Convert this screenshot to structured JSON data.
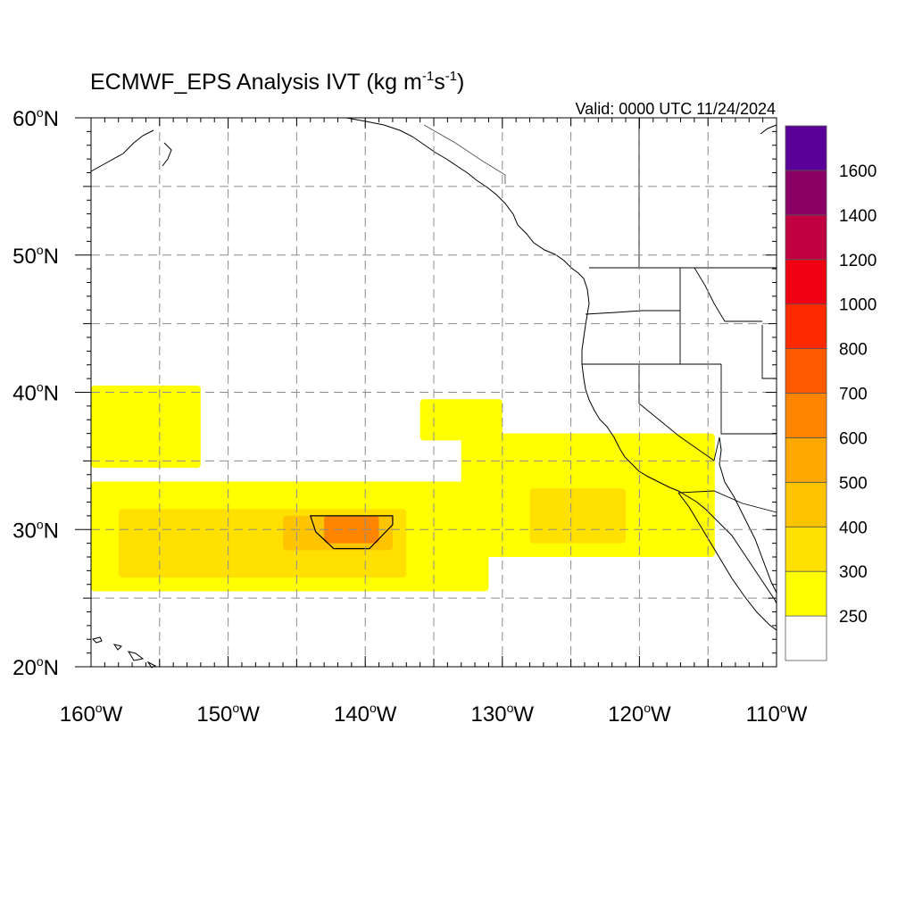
{
  "title": {
    "main": "ECMWF_EPS Analysis IVT (kg m",
    "exp1": "-1",
    "mid": "s",
    "exp2": "-1",
    "close": ")"
  },
  "valid_time": "Valid: 0000 UTC 11/24/2024",
  "axes": {
    "lat_labels": [
      {
        "deg": "60",
        "hem": "N",
        "value": 60
      },
      {
        "deg": "50",
        "hem": "N",
        "value": 50
      },
      {
        "deg": "40",
        "hem": "N",
        "value": 40
      },
      {
        "deg": "30",
        "hem": "N",
        "value": 30
      },
      {
        "deg": "20",
        "hem": "N",
        "value": 20
      }
    ],
    "lon_labels": [
      {
        "deg": "160",
        "hem": "W",
        "value": -160
      },
      {
        "deg": "150",
        "hem": "W",
        "value": -150
      },
      {
        "deg": "140",
        "hem": "W",
        "value": -140
      },
      {
        "deg": "130",
        "hem": "W",
        "value": -130
      },
      {
        "deg": "120",
        "hem": "W",
        "value": -120
      },
      {
        "deg": "110",
        "hem": "W",
        "value": -110
      }
    ],
    "lon_range": [
      -160,
      -110
    ],
    "lat_range": [
      20,
      60
    ],
    "grid_interval_deg": 5,
    "grid_style": "dashed"
  },
  "colorbar": {
    "bins": [
      {
        "color": "#ffffff",
        "label": ""
      },
      {
        "color": "#ffff00",
        "label": "250"
      },
      {
        "color": "#ffe000",
        "label": "300"
      },
      {
        "color": "#ffc400",
        "label": "400"
      },
      {
        "color": "#ffa800",
        "label": "500"
      },
      {
        "color": "#ff8400",
        "label": "600"
      },
      {
        "color": "#ff5a00",
        "label": "700"
      },
      {
        "color": "#ff2a00",
        "label": "800"
      },
      {
        "color": "#ee0010",
        "label": "1000"
      },
      {
        "color": "#c00040",
        "label": "1200"
      },
      {
        "color": "#8a0064",
        "label": "1400"
      },
      {
        "color": "#5a0098",
        "label": "1600"
      }
    ]
  },
  "ivt_field": {
    "units_of_level": "colorbar bin index (1 = 250-300, 2 = 300-400, 3 = 400-500, 4 = 500-600, 5 = 600-700, 6 = 700-800)",
    "regions": [
      {
        "name": "main atmospheric river plume",
        "lon": [
          -160,
          -131
        ],
        "lat": [
          25.5,
          33.5
        ],
        "level": 1
      },
      {
        "name": "plume core",
        "lon": [
          -158,
          -137
        ],
        "lat": [
          26.5,
          31.5
        ],
        "level": 2
      },
      {
        "name": "plume center",
        "lon": [
          -146,
          -138
        ],
        "lat": [
          28.5,
          31
        ],
        "level": 3
      },
      {
        "name": "IVT maximum",
        "lon": [
          -143,
          -139
        ],
        "lat": [
          29,
          31
        ],
        "level": 5
      },
      {
        "name": "coastal branch",
        "lon": [
          -133,
          -114.5
        ],
        "lat": [
          28,
          37
        ],
        "level": 1
      },
      {
        "name": "coastal branch core",
        "lon": [
          -128,
          -121
        ],
        "lat": [
          29,
          33
        ],
        "level": 2
      },
      {
        "name": "northwest tongue",
        "lon": [
          -160,
          -152
        ],
        "lat": [
          34.5,
          40.5
        ],
        "level": 1
      },
      {
        "name": "isolated patch",
        "lon": [
          -136,
          -130
        ],
        "lat": [
          36.5,
          39.5
        ],
        "level": 1
      }
    ],
    "contour_1000": {
      "lon": [
        -144,
        -138
      ],
      "lat": [
        29,
        31
      ]
    }
  },
  "map_features": {
    "coastline": "North America west coast (Alaska to Baja California)",
    "political_boundaries": "US states, Canada–US border, US–Mexico border"
  }
}
